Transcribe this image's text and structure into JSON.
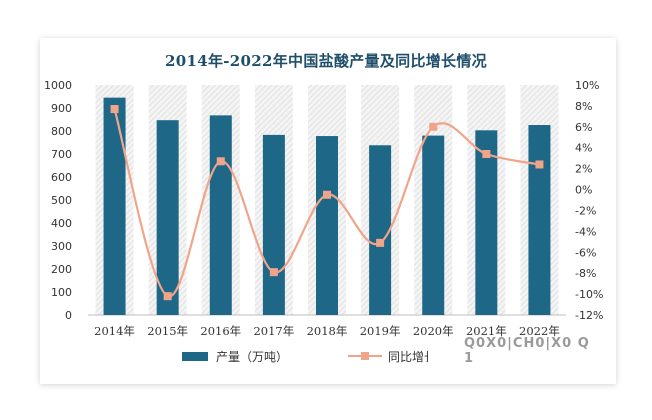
{
  "chart_data": {
    "type": "bar",
    "title": "2014年-2022年中国盐酸产量及同比增长情况",
    "categories": [
      "2014年",
      "2015年",
      "2016年",
      "2017年",
      "2018年",
      "2019年",
      "2020年",
      "2021年",
      "2022年"
    ],
    "series": [
      {
        "name": "产量（万吨）",
        "type": "bar",
        "axis": "left",
        "color": "#1e6787",
        "values": [
          945,
          847,
          868,
          783,
          778,
          738,
          780,
          803,
          826
        ]
      },
      {
        "name": "同比增长",
        "type": "line",
        "axis": "right",
        "color": "#f0a58a",
        "values": [
          7.7,
          -10.2,
          2.7,
          -7.9,
          -0.5,
          -5.1,
          6.0,
          3.4,
          2.4
        ]
      }
    ],
    "left_axis": {
      "ylim": [
        0,
        1000
      ],
      "ticks": [
        "0",
        "100",
        "200",
        "300",
        "400",
        "500",
        "600",
        "700",
        "800",
        "900",
        "1000"
      ]
    },
    "right_axis": {
      "ylim": [
        -12,
        10
      ],
      "ticks": [
        "-12%",
        "-10%",
        "-8%",
        "-6%",
        "-4%",
        "-2%",
        "0%",
        "2%",
        "4%",
        "6%",
        "8%",
        "10%"
      ]
    },
    "grid": false,
    "legend_position": "bottom",
    "watermark": "Q0X0|CH0|X0 Q 1"
  }
}
